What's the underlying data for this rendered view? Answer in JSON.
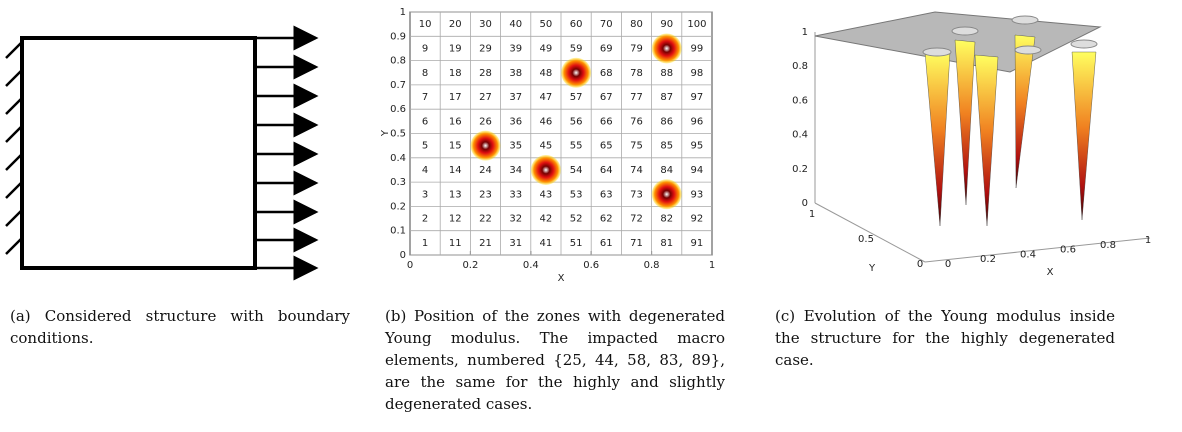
{
  "panel_a": {
    "caption": "(a) Considered structure with boundary conditions."
  },
  "panel_b": {
    "zones": [
      1,
      2,
      3,
      4,
      5,
      6,
      7,
      8,
      9,
      10,
      11,
      12,
      13,
      14,
      15,
      16,
      17,
      18,
      19,
      20,
      21,
      22,
      23,
      24,
      25,
      26,
      27,
      28,
      29,
      30,
      31,
      32,
      33,
      34,
      35,
      36,
      37,
      38,
      39,
      40,
      41,
      42,
      43,
      44,
      45,
      46,
      47,
      48,
      49,
      50,
      51,
      52,
      53,
      54,
      55,
      56,
      57,
      58,
      59,
      60,
      61,
      62,
      63,
      64,
      65,
      66,
      67,
      68,
      69,
      70,
      71,
      72,
      73,
      74,
      75,
      76,
      77,
      78,
      79,
      80,
      81,
      82,
      83,
      84,
      85,
      86,
      87,
      88,
      89,
      90,
      91,
      92,
      93,
      94,
      95,
      96,
      97,
      98,
      99,
      100
    ],
    "impacted": [
      25,
      44,
      58,
      83,
      89
    ],
    "xlim": [
      0,
      1
    ],
    "ylim": [
      0,
      1
    ],
    "xticks": [
      0,
      0.2,
      0.4,
      0.6,
      0.8,
      1
    ],
    "yticks": [
      0,
      0.1,
      0.2,
      0.3,
      0.4,
      0.5,
      0.6,
      0.7,
      0.8,
      0.9,
      1
    ],
    "xlabel": "X",
    "ylabel": "Y",
    "caption": "(b) Position of the zones with degenerated Young modulus. The impacted macro elements, numbered {25, 44, 58, 83, 89}, are the same for the highly and slightly degenerated cases."
  },
  "panel_c": {
    "xticks": [
      0,
      0.2,
      0.4,
      0.6,
      0.8,
      1
    ],
    "yticks": [
      0,
      0.5,
      1
    ],
    "zticks": [
      0,
      0.2,
      0.4,
      0.6,
      0.8,
      1
    ],
    "xlabel": "X",
    "ylabel": "Y",
    "caption": "(c) Evolution of the Young modulus inside the structure for the highly degenerated case."
  }
}
